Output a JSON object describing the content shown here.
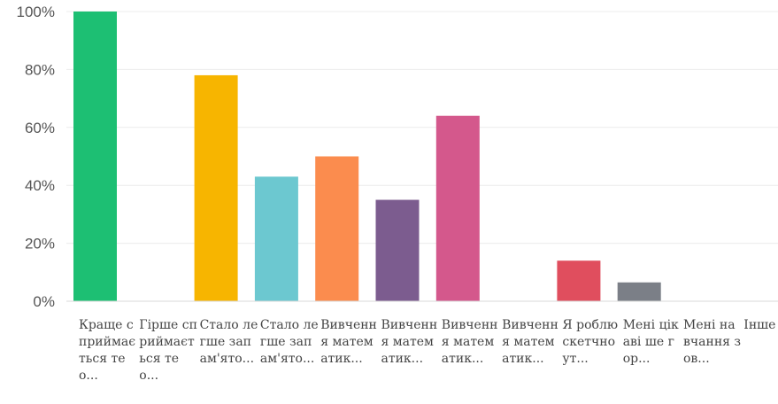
{
  "chart_data": {
    "type": "bar",
    "title": "",
    "xlabel": "",
    "ylabel": "",
    "ylim": [
      0,
      100
    ],
    "grid": true,
    "legend": "none",
    "yticks": [
      "0%",
      "20%",
      "40%",
      "60%",
      "80%",
      "100%"
    ],
    "categories": [
      "Краще сприймається тео...",
      "Гірше сприймається тео...",
      "Стало легше запам'ято...",
      "Стало легше запам'ято...",
      "Вивчення математик...",
      "Вивчення математик...",
      "Вивчення математик...",
      "Вивчення математик...",
      "Я роблю скетчноут...",
      "Мені цікаві ше гор...",
      "Мені навчання зов...",
      "Інше"
    ],
    "values": [
      100,
      0,
      78,
      43,
      50,
      35,
      64,
      0,
      14,
      6.5,
      0,
      0
    ],
    "colors": [
      "#1dbf73",
      "#1dbf73",
      "#f7b500",
      "#6cc8d0",
      "#fb8c4e",
      "#7c5c8f",
      "#d4588c",
      "#d4588c",
      "#e04e5e",
      "#7b7f87",
      "#7b7f87",
      "#7b7f87"
    ]
  }
}
